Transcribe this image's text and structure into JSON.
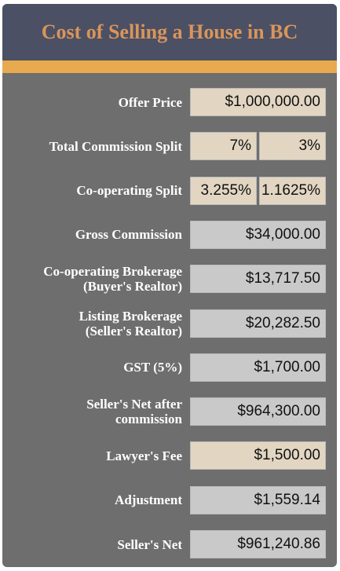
{
  "header": {
    "title": "Cost of Selling a House in BC"
  },
  "rows": [
    {
      "label": [
        "Offer Price"
      ],
      "fields": [
        "$1,000,000.00"
      ],
      "input": true
    },
    {
      "label": [
        "Total Commission Split"
      ],
      "fields": [
        "7%",
        "3%"
      ],
      "input": true
    },
    {
      "label": [
        "Co-operating Split"
      ],
      "fields": [
        "3.255%",
        "1.1625%"
      ],
      "input": true
    },
    {
      "label": [
        "Gross Commission"
      ],
      "fields": [
        "$34,000.00"
      ],
      "input": false
    },
    {
      "label": [
        "Co-operating Brokerage",
        "(Buyer's Realtor)"
      ],
      "fields": [
        "$13,717.50"
      ],
      "input": false
    },
    {
      "label": [
        "Listing Brokerage",
        "(Seller's Realtor)"
      ],
      "fields": [
        "$20,282.50"
      ],
      "input": false
    },
    {
      "label": [
        "GST (5%)"
      ],
      "fields": [
        "$1,700.00"
      ],
      "input": false
    },
    {
      "label": [
        "Seller's Net after",
        "commission"
      ],
      "fields": [
        "$964,300.00"
      ],
      "input": false
    },
    {
      "label": [
        "Lawyer's Fee"
      ],
      "fields": [
        "$1,500.00"
      ],
      "input": true
    },
    {
      "label": [
        "Adjustment"
      ],
      "fields": [
        "$1,559.14"
      ],
      "input": false
    },
    {
      "label": [
        "Seller's Net"
      ],
      "fields": [
        "$961,240.86"
      ],
      "input": false
    }
  ]
}
